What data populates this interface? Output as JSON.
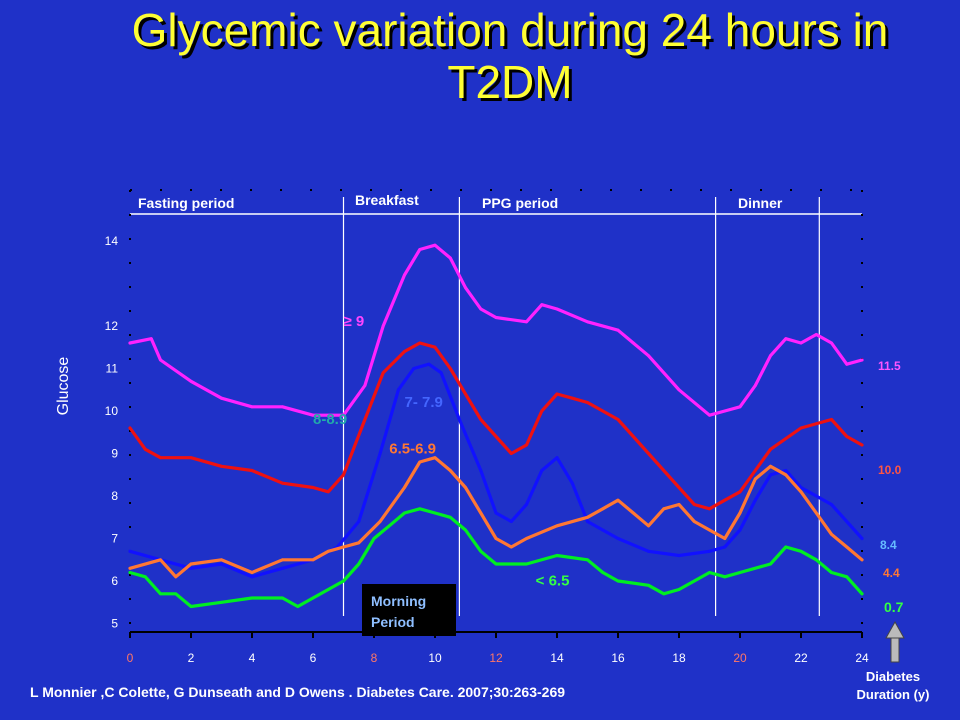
{
  "slide": {
    "title_line1": "Glycemic variation during 24 hours in",
    "title_line2": "T2DM",
    "citation": "L Monnier ,C  Colette, G Dunseath and D Owens . Diabetes Care. 2007;30:263-269",
    "diabetes_label_line1": "Diabetes",
    "diabetes_label_line2": "Duration (y)",
    "morning_period_line1": "Morning",
    "morning_period_line2": "Period"
  },
  "chart_data": {
    "type": "line",
    "title": "",
    "xlabel": "",
    "ylabel": "Glucose",
    "xlim": [
      0,
      24
    ],
    "ylim": [
      4.8,
      15.2
    ],
    "x_ticks": [
      0,
      2,
      4,
      6,
      8,
      10,
      12,
      14,
      16,
      18,
      20,
      22,
      24
    ],
    "y_ticks": [
      5,
      6,
      7,
      8,
      9,
      10,
      11,
      12,
      14
    ],
    "periods": [
      {
        "label": "Fasting period",
        "from": 0,
        "to": 7.0
      },
      {
        "label": "Breakfast",
        "from": 7.0,
        "to": 10.8
      },
      {
        "label": "PPG period",
        "from": 10.8,
        "to": 19.2
      },
      {
        "label": "Dinner",
        "from": 19.2,
        "to": 22.6
      }
    ],
    "period_boundaries": [
      7.0,
      10.8,
      19.2,
      22.6
    ],
    "series": [
      {
        "name": "≥ 9",
        "color": "#ff22ff",
        "right_label": "11.5",
        "x": [
          0,
          0.7,
          1,
          2,
          3,
          4,
          5,
          6,
          7,
          7.7,
          8.3,
          9,
          9.5,
          10,
          10.5,
          11,
          11.5,
          12,
          13,
          13.5,
          14,
          15,
          16,
          17,
          18,
          19,
          19.5,
          20,
          20.5,
          21,
          21.5,
          22,
          22.5,
          23,
          23.5,
          24
        ],
        "y": [
          11.6,
          11.7,
          11.2,
          10.7,
          10.3,
          10.1,
          10.1,
          9.9,
          9.9,
          10.6,
          12.0,
          13.2,
          13.8,
          13.9,
          13.6,
          12.9,
          12.4,
          12.2,
          12.1,
          12.5,
          12.4,
          12.1,
          11.9,
          11.3,
          10.5,
          9.9,
          10.0,
          10.1,
          10.6,
          11.3,
          11.7,
          11.6,
          11.8,
          11.6,
          11.1,
          11.2
        ]
      },
      {
        "name": "7- 7.9",
        "color": "#ee1111",
        "right_label": "10.0",
        "x": [
          0,
          0.5,
          1,
          2,
          3,
          4,
          5,
          6,
          6.5,
          7,
          7.7,
          8.3,
          9,
          9.5,
          10,
          10.5,
          11,
          11.5,
          12,
          12.5,
          13,
          13.5,
          14,
          14.5,
          15,
          16,
          17,
          18,
          18.5,
          19,
          19.5,
          20,
          20.5,
          21,
          22,
          23,
          23.5,
          24
        ],
        "y": [
          9.6,
          9.1,
          8.9,
          8.9,
          8.7,
          8.6,
          8.3,
          8.2,
          8.1,
          8.5,
          9.8,
          10.9,
          11.4,
          11.6,
          11.5,
          11.0,
          10.4,
          9.8,
          9.4,
          9.0,
          9.2,
          10.0,
          10.4,
          10.3,
          10.2,
          9.8,
          9.0,
          8.2,
          7.8,
          7.7,
          7.9,
          8.1,
          8.6,
          9.1,
          9.6,
          9.8,
          9.4,
          9.2
        ]
      },
      {
        "name": "8-8.9",
        "color": "#1111ff",
        "right_label": "8.4",
        "x": [
          0,
          1,
          2,
          3,
          4,
          5,
          6,
          6.8,
          7.5,
          8.2,
          8.8,
          9.3,
          9.8,
          10.2,
          10.8,
          11.5,
          12,
          12.5,
          13,
          13.5,
          14,
          14.5,
          15,
          16,
          17,
          18,
          19,
          19.5,
          20,
          20.5,
          21,
          21.5,
          22,
          23,
          24
        ],
        "y": [
          6.7,
          6.5,
          6.3,
          6.4,
          6.1,
          6.3,
          6.5,
          6.8,
          7.4,
          9.0,
          10.5,
          11.0,
          11.1,
          10.9,
          9.8,
          8.6,
          7.6,
          7.4,
          7.8,
          8.6,
          8.9,
          8.3,
          7.4,
          7.0,
          6.7,
          6.6,
          6.7,
          6.8,
          7.2,
          7.9,
          8.5,
          8.6,
          8.2,
          7.8,
          7.0
        ]
      },
      {
        "name": "6.5-6.9",
        "color": "#ff7733",
        "right_label": "4.4",
        "x": [
          0,
          1,
          1.5,
          2,
          3,
          4,
          5,
          6,
          6.5,
          7,
          7.5,
          8.2,
          9,
          9.5,
          10,
          10.5,
          11,
          11.5,
          12,
          12.5,
          13,
          14,
          15,
          15.5,
          16,
          16.5,
          17,
          17.5,
          18,
          18.5,
          19,
          19.5,
          20,
          20.5,
          21,
          21.5,
          22,
          22.5,
          23,
          23.5,
          24
        ],
        "y": [
          6.3,
          6.5,
          6.1,
          6.4,
          6.5,
          6.2,
          6.5,
          6.5,
          6.7,
          6.8,
          6.9,
          7.4,
          8.2,
          8.8,
          8.9,
          8.6,
          8.2,
          7.6,
          7.0,
          6.8,
          7.0,
          7.3,
          7.5,
          7.7,
          7.9,
          7.6,
          7.3,
          7.7,
          7.8,
          7.4,
          7.2,
          7.0,
          7.6,
          8.4,
          8.7,
          8.5,
          8.1,
          7.6,
          7.1,
          6.8,
          6.5
        ]
      },
      {
        "name": "< 6.5",
        "color": "#00ee22",
        "right_label": "0.7",
        "x": [
          0,
          0.5,
          1,
          1.5,
          2,
          3,
          4,
          5,
          5.5,
          6,
          7,
          7.5,
          8,
          8.5,
          9,
          9.5,
          10,
          10.5,
          11,
          11.5,
          12,
          13,
          14,
          15,
          15.5,
          16,
          17,
          17.5,
          18,
          18.5,
          19,
          19.5,
          20,
          21,
          21.5,
          22,
          22.5,
          23,
          23.5,
          24
        ],
        "y": [
          6.2,
          6.1,
          5.7,
          5.7,
          5.4,
          5.5,
          5.6,
          5.6,
          5.4,
          5.6,
          6.0,
          6.4,
          7.0,
          7.3,
          7.6,
          7.7,
          7.6,
          7.5,
          7.2,
          6.7,
          6.4,
          6.4,
          6.6,
          6.5,
          6.2,
          6.0,
          5.9,
          5.7,
          5.8,
          6.0,
          6.2,
          6.1,
          6.2,
          6.4,
          6.8,
          6.7,
          6.5,
          6.2,
          6.1,
          5.7
        ]
      }
    ],
    "series_labels": [
      {
        "text": "≥ 9",
        "x": 7.0,
        "y": 12.0,
        "color": "#ff44ff"
      },
      {
        "text": "7- 7.9",
        "x": 9.0,
        "y": 10.1,
        "color": "#4466ff"
      },
      {
        "text": "8-8.9",
        "x": 6.0,
        "y": 9.7,
        "color": "#22aaaa"
      },
      {
        "text": "6.5-6.9",
        "x": 8.5,
        "y": 9.0,
        "color": "#ff7733"
      },
      {
        "text": "< 6.5",
        "x": 13.3,
        "y": 5.9,
        "color": "#33ff44"
      }
    ]
  }
}
